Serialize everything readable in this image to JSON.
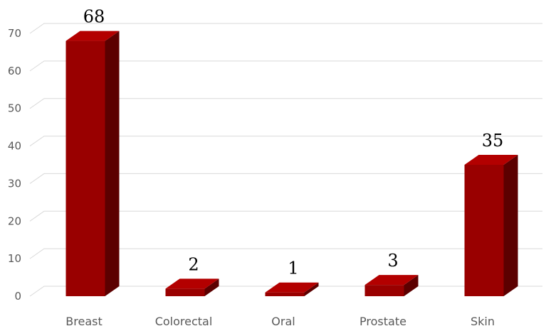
{
  "chart_data": {
    "type": "bar",
    "categories": [
      "Breast",
      "Colorectal",
      "Oral",
      "Prostate",
      "Skin"
    ],
    "values": [
      68,
      2,
      1,
      3,
      35
    ],
    "data_labels": [
      "68",
      "2",
      "1",
      "3",
      "35"
    ],
    "title": "",
    "xlabel": "",
    "ylabel": "",
    "ylim": [
      0,
      70
    ],
    "yticks": [
      0,
      10,
      20,
      30,
      40,
      50,
      60,
      70
    ],
    "grid": true,
    "style": "3d-column",
    "colors": {
      "front": "#990000",
      "side": "#5c0000",
      "top": "#b30000"
    }
  }
}
